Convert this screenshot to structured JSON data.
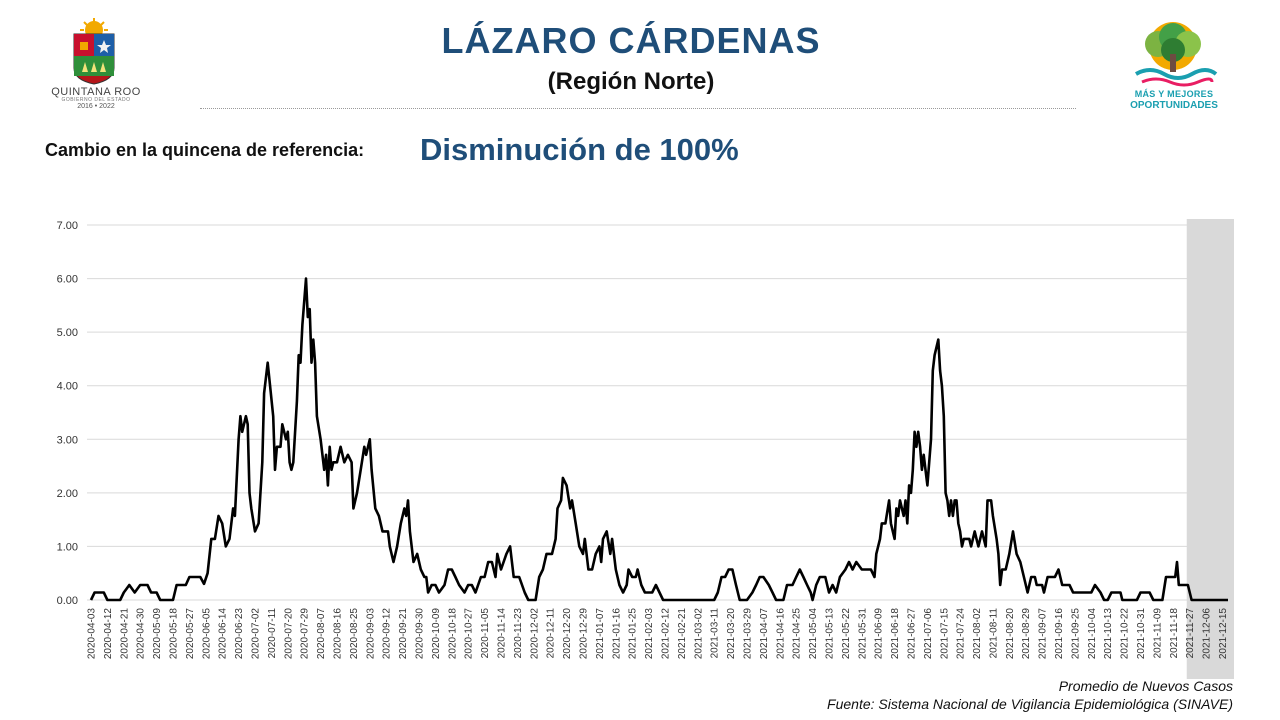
{
  "header": {
    "title": "LÁZARO CÁRDENAS",
    "subtitle": "(Región Norte)"
  },
  "summary": {
    "label": "Cambio en la quincena de referencia:",
    "value": "Disminución de 100%"
  },
  "logos": {
    "left": {
      "name": "QUINTANA ROO",
      "sub": "GOBIERNO DEL ESTADO",
      "years": "2016 • 2022"
    },
    "right": {
      "line1": "MÁS Y MEJORES",
      "line2": "OPORTUNIDADES"
    }
  },
  "footer": {
    "series_note": "Promedio de Nuevos Casos",
    "source": "Fuente: Sistema Nacional de Vigilancia Epidemiológica (SINAVE)"
  },
  "colors": {
    "title": "#1f4e79",
    "line": "#000000",
    "grid": "#d9d9d9",
    "shade": "#d9d9d9"
  },
  "chart_data": {
    "type": "line",
    "ylim": [
      0,
      7
    ],
    "yticks": [
      "0.00",
      "1.00",
      "2.00",
      "3.00",
      "4.00",
      "5.00",
      "6.00",
      "7.00"
    ],
    "x_ticks": [
      "2020-04-03",
      "2020-04-12",
      "2020-04-21",
      "2020-04-30",
      "2020-05-09",
      "2020-05-18",
      "2020-05-27",
      "2020-06-05",
      "2020-06-14",
      "2020-06-23",
      "2020-07-02",
      "2020-07-11",
      "2020-07-20",
      "2020-07-29",
      "2020-08-07",
      "2020-08-16",
      "2020-08-25",
      "2020-09-03",
      "2020-09-12",
      "2020-09-21",
      "2020-09-30",
      "2020-10-09",
      "2020-10-18",
      "2020-10-27",
      "2020-11-05",
      "2020-11-14",
      "2020-11-23",
      "2020-12-02",
      "2020-12-11",
      "2020-12-20",
      "2020-12-29",
      "2021-01-07",
      "2021-01-16",
      "2021-01-25",
      "2021-02-03",
      "2021-02-12",
      "2021-02-21",
      "2021-03-02",
      "2021-03-11",
      "2021-03-20",
      "2021-03-29",
      "2021-04-07",
      "2021-04-16",
      "2021-04-25",
      "2021-05-04",
      "2021-05-13",
      "2021-05-22",
      "2021-05-31",
      "2021-06-09",
      "2021-06-18",
      "2021-06-27",
      "2021-07-06",
      "2021-07-15",
      "2021-07-24",
      "2021-08-02",
      "2021-08-11",
      "2021-08-20",
      "2021-08-29",
      "2021-09-07",
      "2021-09-16",
      "2021-09-25",
      "2021-10-04",
      "2021-10-13",
      "2021-10-22",
      "2021-10-31",
      "2021-11-09",
      "2021-11-18",
      "2021-11-27",
      "2021-12-06",
      "2021-12-15"
    ],
    "shade_start": "2021-11-27",
    "points": [
      [
        "2020-04-03",
        0.0
      ],
      [
        "2020-04-05",
        0.14
      ],
      [
        "2020-04-10",
        0.14
      ],
      [
        "2020-04-12",
        0.0
      ],
      [
        "2020-04-19",
        0.0
      ],
      [
        "2020-04-21",
        0.14
      ],
      [
        "2020-04-24",
        0.28
      ],
      [
        "2020-04-27",
        0.14
      ],
      [
        "2020-04-30",
        0.28
      ],
      [
        "2020-05-04",
        0.28
      ],
      [
        "2020-05-06",
        0.14
      ],
      [
        "2020-05-09",
        0.14
      ],
      [
        "2020-05-11",
        0.0
      ],
      [
        "2020-05-18",
        0.0
      ],
      [
        "2020-05-20",
        0.28
      ],
      [
        "2020-05-25",
        0.28
      ],
      [
        "2020-05-27",
        0.43
      ],
      [
        "2020-06-02",
        0.43
      ],
      [
        "2020-06-04",
        0.3
      ],
      [
        "2020-06-06",
        0.5
      ],
      [
        "2020-06-08",
        1.14
      ],
      [
        "2020-06-10",
        1.14
      ],
      [
        "2020-06-12",
        1.57
      ],
      [
        "2020-06-14",
        1.43
      ],
      [
        "2020-06-16",
        1.0
      ],
      [
        "2020-06-18",
        1.14
      ],
      [
        "2020-06-20",
        1.71
      ],
      [
        "2020-06-21",
        1.57
      ],
      [
        "2020-06-23",
        3.0
      ],
      [
        "2020-06-24",
        3.43
      ],
      [
        "2020-06-25",
        3.14
      ],
      [
        "2020-06-27",
        3.43
      ],
      [
        "2020-06-28",
        3.28
      ],
      [
        "2020-06-29",
        2.0
      ],
      [
        "2020-06-30",
        1.71
      ],
      [
        "2020-07-02",
        1.28
      ],
      [
        "2020-07-04",
        1.43
      ],
      [
        "2020-07-06",
        2.57
      ],
      [
        "2020-07-07",
        3.86
      ],
      [
        "2020-07-09",
        4.43
      ],
      [
        "2020-07-12",
        3.43
      ],
      [
        "2020-07-13",
        2.43
      ],
      [
        "2020-07-14",
        2.86
      ],
      [
        "2020-07-16",
        2.86
      ],
      [
        "2020-07-17",
        3.28
      ],
      [
        "2020-07-19",
        3.0
      ],
      [
        "2020-07-20",
        3.14
      ],
      [
        "2020-07-21",
        2.57
      ],
      [
        "2020-07-22",
        2.43
      ],
      [
        "2020-07-23",
        2.57
      ],
      [
        "2020-07-25",
        3.71
      ],
      [
        "2020-07-26",
        4.57
      ],
      [
        "2020-07-27",
        4.43
      ],
      [
        "2020-07-28",
        5.14
      ],
      [
        "2020-07-30",
        6.0
      ],
      [
        "2020-07-31",
        5.28
      ],
      [
        "2020-08-01",
        5.43
      ],
      [
        "2020-08-02",
        4.43
      ],
      [
        "2020-08-03",
        4.86
      ],
      [
        "2020-08-04",
        4.43
      ],
      [
        "2020-08-05",
        3.43
      ],
      [
        "2020-08-07",
        3.0
      ],
      [
        "2020-08-09",
        2.43
      ],
      [
        "2020-08-10",
        2.71
      ],
      [
        "2020-08-11",
        2.14
      ],
      [
        "2020-08-12",
        2.86
      ],
      [
        "2020-08-13",
        2.43
      ],
      [
        "2020-08-14",
        2.57
      ],
      [
        "2020-08-16",
        2.57
      ],
      [
        "2020-08-18",
        2.86
      ],
      [
        "2020-08-20",
        2.57
      ],
      [
        "2020-08-22",
        2.71
      ],
      [
        "2020-08-24",
        2.57
      ],
      [
        "2020-08-25",
        1.71
      ],
      [
        "2020-08-27",
        2.0
      ],
      [
        "2020-08-29",
        2.43
      ],
      [
        "2020-08-31",
        2.86
      ],
      [
        "2020-09-01",
        2.71
      ],
      [
        "2020-09-03",
        3.0
      ],
      [
        "2020-09-04",
        2.43
      ],
      [
        "2020-09-06",
        1.71
      ],
      [
        "2020-09-08",
        1.57
      ],
      [
        "2020-09-10",
        1.28
      ],
      [
        "2020-09-13",
        1.28
      ],
      [
        "2020-09-14",
        1.0
      ],
      [
        "2020-09-16",
        0.71
      ],
      [
        "2020-09-18",
        1.0
      ],
      [
        "2020-09-20",
        1.43
      ],
      [
        "2020-09-22",
        1.71
      ],
      [
        "2020-09-23",
        1.57
      ],
      [
        "2020-09-24",
        1.86
      ],
      [
        "2020-09-25",
        1.28
      ],
      [
        "2020-09-27",
        0.71
      ],
      [
        "2020-09-29",
        0.86
      ],
      [
        "2020-10-01",
        0.57
      ],
      [
        "2020-10-03",
        0.43
      ],
      [
        "2020-10-04",
        0.43
      ],
      [
        "2020-10-05",
        0.14
      ],
      [
        "2020-10-07",
        0.28
      ],
      [
        "2020-10-09",
        0.28
      ],
      [
        "2020-10-11",
        0.14
      ],
      [
        "2020-10-14",
        0.28
      ],
      [
        "2020-10-16",
        0.57
      ],
      [
        "2020-10-18",
        0.57
      ],
      [
        "2020-10-20",
        0.43
      ],
      [
        "2020-10-22",
        0.28
      ],
      [
        "2020-10-25",
        0.14
      ],
      [
        "2020-10-27",
        0.28
      ],
      [
        "2020-10-29",
        0.28
      ],
      [
        "2020-10-31",
        0.14
      ],
      [
        "2020-11-03",
        0.43
      ],
      [
        "2020-11-05",
        0.43
      ],
      [
        "2020-11-07",
        0.71
      ],
      [
        "2020-11-09",
        0.71
      ],
      [
        "2020-11-11",
        0.43
      ],
      [
        "2020-11-12",
        0.86
      ],
      [
        "2020-11-14",
        0.57
      ],
      [
        "2020-11-17",
        0.86
      ],
      [
        "2020-11-19",
        1.0
      ],
      [
        "2020-11-21",
        0.43
      ],
      [
        "2020-11-24",
        0.43
      ],
      [
        "2020-11-27",
        0.14
      ],
      [
        "2020-11-29",
        0.0
      ],
      [
        "2020-12-03",
        0.0
      ],
      [
        "2020-12-05",
        0.43
      ],
      [
        "2020-12-07",
        0.57
      ],
      [
        "2020-12-09",
        0.86
      ],
      [
        "2020-12-12",
        0.86
      ],
      [
        "2020-12-14",
        1.14
      ],
      [
        "2020-12-15",
        1.71
      ],
      [
        "2020-12-17",
        1.86
      ],
      [
        "2020-12-18",
        2.28
      ],
      [
        "2020-12-20",
        2.14
      ],
      [
        "2020-12-22",
        1.71
      ],
      [
        "2020-12-23",
        1.86
      ],
      [
        "2020-12-25",
        1.43
      ],
      [
        "2020-12-27",
        1.0
      ],
      [
        "2020-12-29",
        0.86
      ],
      [
        "2020-12-30",
        1.14
      ],
      [
        "2021-01-01",
        0.57
      ],
      [
        "2021-01-03",
        0.57
      ],
      [
        "2021-01-05",
        0.86
      ],
      [
        "2021-01-07",
        1.0
      ],
      [
        "2021-01-08",
        0.71
      ],
      [
        "2021-01-09",
        1.14
      ],
      [
        "2021-01-11",
        1.28
      ],
      [
        "2021-01-13",
        0.86
      ],
      [
        "2021-01-14",
        1.14
      ],
      [
        "2021-01-16",
        0.57
      ],
      [
        "2021-01-18",
        0.28
      ],
      [
        "2021-01-20",
        0.14
      ],
      [
        "2021-01-22",
        0.28
      ],
      [
        "2021-01-23",
        0.57
      ],
      [
        "2021-01-25",
        0.43
      ],
      [
        "2021-01-27",
        0.43
      ],
      [
        "2021-01-28",
        0.57
      ],
      [
        "2021-01-30",
        0.28
      ],
      [
        "2021-02-01",
        0.14
      ],
      [
        "2021-02-05",
        0.14
      ],
      [
        "2021-02-07",
        0.28
      ],
      [
        "2021-02-09",
        0.14
      ],
      [
        "2021-02-11",
        0.0
      ],
      [
        "2021-03-11",
        0.0
      ],
      [
        "2021-03-13",
        0.14
      ],
      [
        "2021-03-15",
        0.43
      ],
      [
        "2021-03-17",
        0.43
      ],
      [
        "2021-03-19",
        0.57
      ],
      [
        "2021-03-21",
        0.57
      ],
      [
        "2021-03-23",
        0.28
      ],
      [
        "2021-03-25",
        0.0
      ],
      [
        "2021-03-29",
        0.0
      ],
      [
        "2021-04-01",
        0.14
      ],
      [
        "2021-04-03",
        0.28
      ],
      [
        "2021-04-05",
        0.43
      ],
      [
        "2021-04-07",
        0.43
      ],
      [
        "2021-04-10",
        0.28
      ],
      [
        "2021-04-12",
        0.14
      ],
      [
        "2021-04-14",
        0.0
      ],
      [
        "2021-04-18",
        0.0
      ],
      [
        "2021-04-20",
        0.28
      ],
      [
        "2021-04-23",
        0.28
      ],
      [
        "2021-04-25",
        0.43
      ],
      [
        "2021-04-27",
        0.57
      ],
      [
        "2021-04-29",
        0.43
      ],
      [
        "2021-05-01",
        0.28
      ],
      [
        "2021-05-03",
        0.14
      ],
      [
        "2021-05-04",
        0.0
      ],
      [
        "2021-05-06",
        0.28
      ],
      [
        "2021-05-08",
        0.43
      ],
      [
        "2021-05-11",
        0.43
      ],
      [
        "2021-05-13",
        0.14
      ],
      [
        "2021-05-15",
        0.28
      ],
      [
        "2021-05-17",
        0.14
      ],
      [
        "2021-05-19",
        0.43
      ],
      [
        "2021-05-22",
        0.57
      ],
      [
        "2021-05-24",
        0.71
      ],
      [
        "2021-05-26",
        0.57
      ],
      [
        "2021-05-28",
        0.71
      ],
      [
        "2021-05-31",
        0.57
      ],
      [
        "2021-06-05",
        0.57
      ],
      [
        "2021-06-07",
        0.43
      ],
      [
        "2021-06-08",
        0.86
      ],
      [
        "2021-06-10",
        1.14
      ],
      [
        "2021-06-11",
        1.43
      ],
      [
        "2021-06-13",
        1.43
      ],
      [
        "2021-06-15",
        1.86
      ],
      [
        "2021-06-16",
        1.43
      ],
      [
        "2021-06-18",
        1.14
      ],
      [
        "2021-06-19",
        1.71
      ],
      [
        "2021-06-20",
        1.57
      ],
      [
        "2021-06-21",
        1.86
      ],
      [
        "2021-06-23",
        1.57
      ],
      [
        "2021-06-24",
        1.86
      ],
      [
        "2021-06-25",
        1.43
      ],
      [
        "2021-06-26",
        2.14
      ],
      [
        "2021-06-27",
        2.0
      ],
      [
        "2021-06-28",
        2.43
      ],
      [
        "2021-06-29",
        3.14
      ],
      [
        "2021-06-30",
        2.86
      ],
      [
        "2021-07-01",
        3.14
      ],
      [
        "2021-07-02",
        2.86
      ],
      [
        "2021-07-03",
        2.43
      ],
      [
        "2021-07-04",
        2.71
      ],
      [
        "2021-07-05",
        2.43
      ],
      [
        "2021-07-06",
        2.14
      ],
      [
        "2021-07-07",
        2.57
      ],
      [
        "2021-07-08",
        3.0
      ],
      [
        "2021-07-09",
        4.28
      ],
      [
        "2021-07-10",
        4.57
      ],
      [
        "2021-07-12",
        4.86
      ],
      [
        "2021-07-13",
        4.28
      ],
      [
        "2021-07-14",
        4.0
      ],
      [
        "2021-07-15",
        3.43
      ],
      [
        "2021-07-16",
        2.0
      ],
      [
        "2021-07-17",
        1.86
      ],
      [
        "2021-07-18",
        1.57
      ],
      [
        "2021-07-19",
        1.86
      ],
      [
        "2021-07-20",
        1.57
      ],
      [
        "2021-07-21",
        1.86
      ],
      [
        "2021-07-22",
        1.86
      ],
      [
        "2021-07-23",
        1.43
      ],
      [
        "2021-07-24",
        1.28
      ],
      [
        "2021-07-25",
        1.0
      ],
      [
        "2021-07-26",
        1.14
      ],
      [
        "2021-07-29",
        1.14
      ],
      [
        "2021-07-30",
        1.0
      ],
      [
        "2021-08-01",
        1.28
      ],
      [
        "2021-08-02",
        1.14
      ],
      [
        "2021-08-03",
        1.0
      ],
      [
        "2021-08-05",
        1.28
      ],
      [
        "2021-08-07",
        1.0
      ],
      [
        "2021-08-08",
        1.86
      ],
      [
        "2021-08-10",
        1.86
      ],
      [
        "2021-08-11",
        1.57
      ],
      [
        "2021-08-13",
        1.14
      ],
      [
        "2021-08-14",
        0.86
      ],
      [
        "2021-08-15",
        0.28
      ],
      [
        "2021-08-16",
        0.57
      ],
      [
        "2021-08-18",
        0.57
      ],
      [
        "2021-08-20",
        0.86
      ],
      [
        "2021-08-22",
        1.28
      ],
      [
        "2021-08-24",
        0.86
      ],
      [
        "2021-08-26",
        0.71
      ],
      [
        "2021-08-28",
        0.43
      ],
      [
        "2021-08-30",
        0.14
      ],
      [
        "2021-09-01",
        0.43
      ],
      [
        "2021-09-03",
        0.43
      ],
      [
        "2021-09-04",
        0.28
      ],
      [
        "2021-09-07",
        0.28
      ],
      [
        "2021-09-08",
        0.14
      ],
      [
        "2021-09-10",
        0.43
      ],
      [
        "2021-09-14",
        0.43
      ],
      [
        "2021-09-16",
        0.57
      ],
      [
        "2021-09-18",
        0.28
      ],
      [
        "2021-09-22",
        0.28
      ],
      [
        "2021-09-24",
        0.14
      ],
      [
        "2021-10-04",
        0.14
      ],
      [
        "2021-10-06",
        0.28
      ],
      [
        "2021-10-09",
        0.14
      ],
      [
        "2021-10-11",
        0.0
      ],
      [
        "2021-10-13",
        0.0
      ],
      [
        "2021-10-15",
        0.14
      ],
      [
        "2021-10-20",
        0.14
      ],
      [
        "2021-10-21",
        0.0
      ],
      [
        "2021-10-29",
        0.0
      ],
      [
        "2021-10-31",
        0.14
      ],
      [
        "2021-11-05",
        0.14
      ],
      [
        "2021-11-07",
        0.0
      ],
      [
        "2021-11-12",
        0.0
      ],
      [
        "2021-11-14",
        0.43
      ],
      [
        "2021-11-19",
        0.43
      ],
      [
        "2021-11-20",
        0.71
      ],
      [
        "2021-11-21",
        0.28
      ],
      [
        "2021-11-26",
        0.28
      ],
      [
        "2021-11-28",
        0.0
      ],
      [
        "2021-12-18",
        0.0
      ]
    ]
  }
}
